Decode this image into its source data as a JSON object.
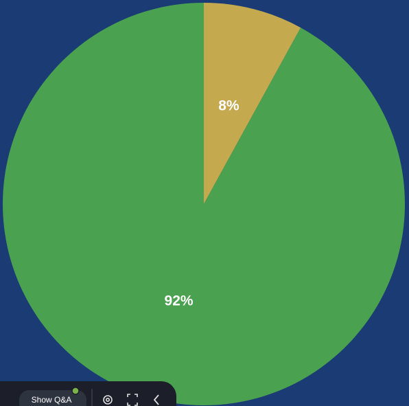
{
  "chart_data": {
    "type": "pie",
    "values": [
      8,
      92
    ],
    "value_labels": [
      "8%",
      "92%"
    ],
    "colors": [
      "#c4a94f",
      "#4aa14f"
    ],
    "start_angle": 0,
    "direction": "clockwise"
  },
  "toolbar": {
    "button": "Show Q&A"
  }
}
